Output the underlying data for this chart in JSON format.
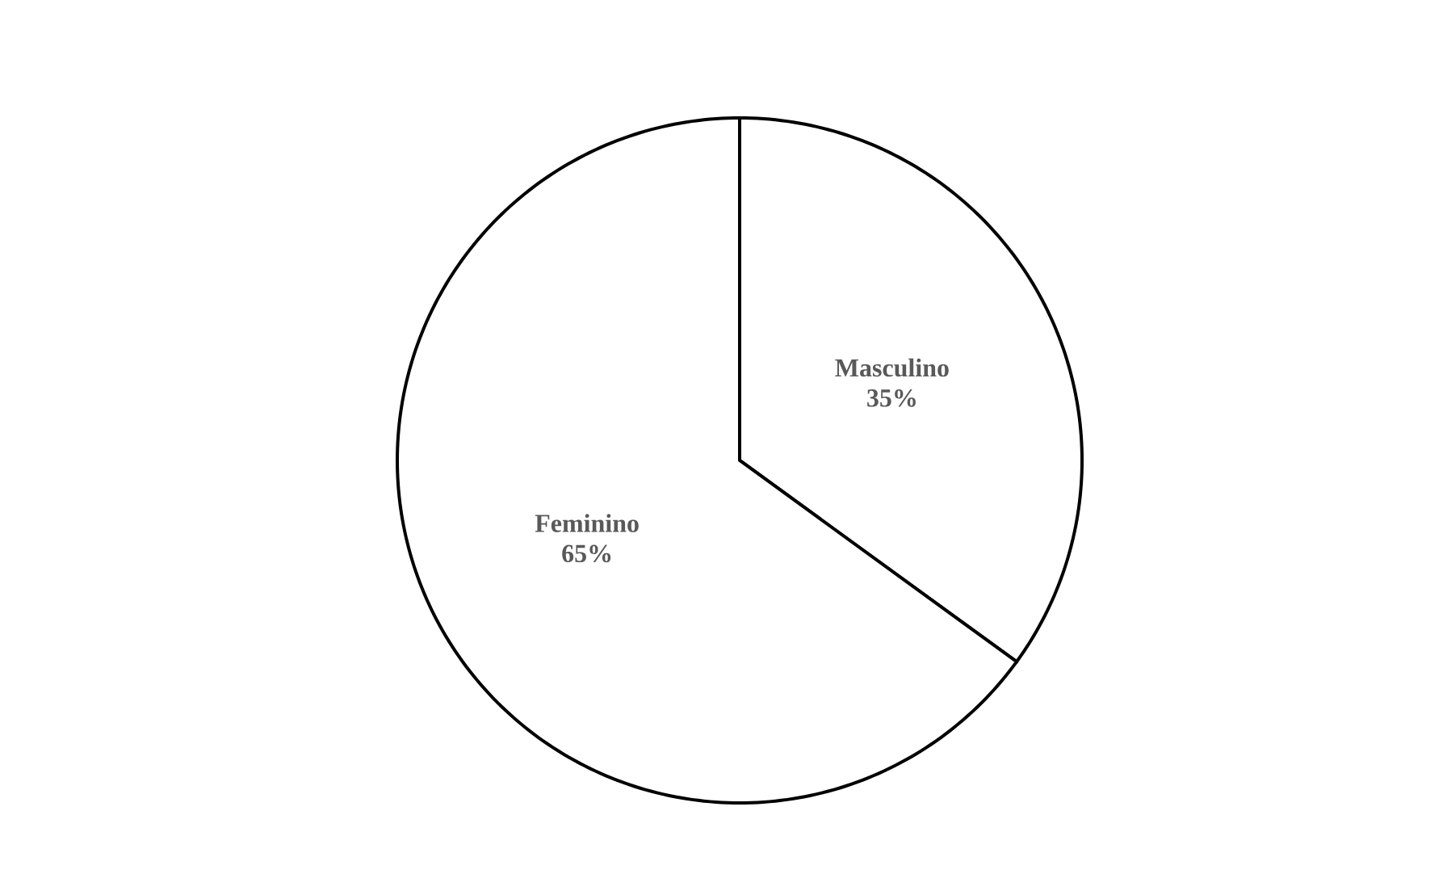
{
  "chart_data": {
    "type": "pie",
    "categories": [
      "Masculino",
      "Feminino"
    ],
    "values": [
      35,
      65
    ],
    "value_labels": [
      "35%",
      "65%"
    ],
    "colors": [
      "#ffffff",
      "#ffffff"
    ]
  }
}
